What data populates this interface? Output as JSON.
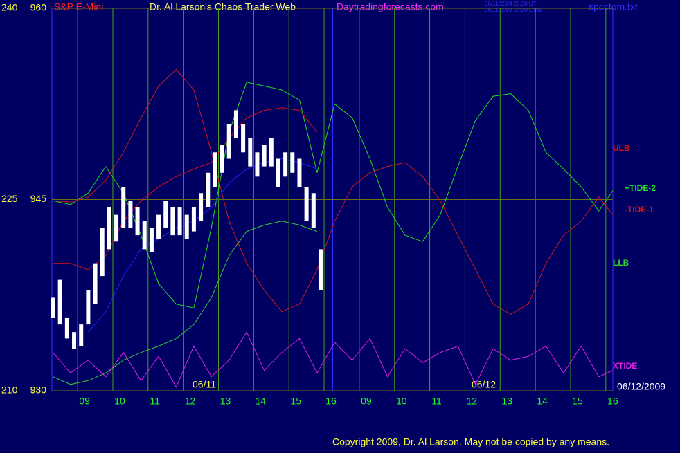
{
  "chart_data": {
    "type": "line",
    "title": "Dr. Al Larson's Chaos Trader Web",
    "instrument": "S&P E-Mini",
    "site": "Daytradingforecasts.com",
    "file": "spcctom.txt",
    "timestamps": [
      "06/11/2009 20:30 UT",
      "06/11/2009 15:30 Local"
    ],
    "date_labels": [
      "06/11",
      "06/12"
    ],
    "end_date": "06/12/2009",
    "copyright": "Copyright 2009, Dr. Al Larson. May not be copied by any means.",
    "xlim": [
      -0.73,
      15.2
    ],
    "xticks": [
      {
        "value": 0,
        "label": "09"
      },
      {
        "value": 1,
        "label": "10"
      },
      {
        "value": 2,
        "label": "11"
      },
      {
        "value": 3,
        "label": "12"
      },
      {
        "value": 4,
        "label": "13"
      },
      {
        "value": 5,
        "label": "14"
      },
      {
        "value": 6,
        "label": "15"
      },
      {
        "value": 7,
        "label": "16"
      },
      {
        "value": 8,
        "label": "09"
      },
      {
        "value": 9,
        "label": "10"
      },
      {
        "value": 10,
        "label": "11"
      },
      {
        "value": 11,
        "label": "12"
      },
      {
        "value": 12,
        "label": "13"
      },
      {
        "value": 13,
        "label": "14"
      },
      {
        "value": 14,
        "label": "15"
      },
      {
        "value": 15,
        "label": "16"
      }
    ],
    "ylim": [
      930,
      960
    ],
    "yticks": [
      930,
      945,
      960
    ],
    "y2lim": [
      210,
      240
    ],
    "y2ticks": [
      210,
      225,
      240
    ],
    "grid": true,
    "x": [
      -0.7,
      -0.2,
      0.3,
      0.8,
      1.3,
      1.8,
      2.3,
      2.8,
      3.3,
      3.8,
      4.3,
      4.8,
      5.3,
      5.8,
      6.3,
      6.8,
      7.3,
      7.8,
      8.3,
      8.8,
      9.3,
      9.8,
      10.3,
      10.8,
      11.3,
      11.8,
      12.3,
      12.8,
      13.3,
      13.8,
      14.3,
      14.8,
      15.2
    ],
    "series": [
      {
        "name": "ULB",
        "color": "#e01010",
        "values": [
          940.0,
          940.0,
          939.5,
          940.6,
          943.3,
          944.9,
          946.0,
          946.8,
          947.4,
          947.9,
          949.8,
          951.4,
          952.0,
          952.2,
          952.0,
          950.3,
          null,
          null,
          null,
          null,
          null,
          null,
          null,
          null,
          null,
          null,
          null,
          null,
          null,
          null,
          null,
          null,
          null
        ]
      },
      {
        "name": "+TIDE-2",
        "color": "#20e020",
        "values": [
          944.9,
          944.6,
          945.5,
          947.6,
          945.5,
          942.2,
          938.4,
          936.8,
          936.5,
          942.8,
          950.3,
          954.2,
          953.9,
          953.6,
          952.8,
          947.1,
          952.5,
          951.4,
          948.2,
          944.4,
          942.2,
          941.7,
          943.8,
          947.6,
          951.2,
          953.1,
          953.3,
          952.0,
          948.7,
          947.4,
          946.0,
          944.1,
          945.7
        ]
      },
      {
        "name": "-TIDE-1",
        "color": "#d01818",
        "values": [
          944.9,
          944.8,
          945.2,
          946.5,
          948.7,
          951.4,
          953.9,
          955.2,
          953.6,
          948.7,
          943.3,
          940.0,
          937.9,
          936.2,
          936.8,
          939.5,
          943.3,
          946.0,
          947.1,
          947.6,
          947.9,
          946.8,
          944.9,
          942.2,
          939.5,
          936.8,
          936.0,
          936.8,
          940.0,
          942.2,
          943.3,
          945.2,
          943.8
        ]
      },
      {
        "name": "LLB",
        "color": "#30d030",
        "values": [
          931.1,
          930.5,
          930.8,
          931.4,
          932.4,
          933.0,
          933.5,
          934.1,
          935.2,
          937.3,
          940.6,
          942.5,
          943.0,
          943.3,
          943.0,
          942.5,
          null,
          null,
          null,
          null,
          null,
          null,
          null,
          null,
          null,
          null,
          null,
          null,
          null,
          null,
          null,
          null,
          null
        ]
      },
      {
        "name": "XTIDE",
        "color": "#e020e0",
        "values": [
          933.0,
          931.4,
          932.4,
          931.1,
          933.0,
          930.8,
          932.7,
          930.3,
          933.5,
          931.1,
          932.4,
          934.6,
          931.6,
          933.0,
          934.1,
          931.4,
          933.8,
          932.4,
          934.1,
          931.1,
          933.3,
          932.2,
          933.0,
          933.5,
          930.5,
          933.3,
          932.4,
          932.7,
          933.5,
          931.4,
          933.5,
          931.1,
          931.6
        ]
      }
    ],
    "average": {
      "color": "#2020ff",
      "values": [
        null,
        null,
        934.6,
        936.2,
        939.0,
        941.1,
        941.9,
        942.8,
        943.3,
        944.4,
        946.3,
        947.4,
        947.9,
        948.2,
        947.9,
        947.4,
        null,
        null,
        null,
        null,
        null,
        null,
        null,
        null,
        null,
        null,
        null,
        null,
        null,
        null,
        null,
        null,
        null
      ]
    },
    "price_bars": {
      "color": "#ffffff",
      "x": [
        -0.7,
        -0.5,
        -0.3,
        -0.1,
        0.1,
        0.3,
        0.5,
        0.7,
        0.9,
        1.1,
        1.3,
        1.5,
        1.7,
        1.9,
        2.1,
        2.3,
        2.5,
        2.7,
        2.9,
        3.1,
        3.3,
        3.5,
        3.7,
        3.9,
        4.1,
        4.3,
        4.5,
        4.7,
        4.9,
        5.1,
        5.3,
        5.5,
        5.7,
        5.9,
        6.1,
        6.3,
        6.5,
        6.7,
        6.9
      ],
      "low": [
        935.7,
        935.2,
        934.1,
        933.3,
        933.5,
        935.2,
        936.8,
        939.0,
        941.1,
        941.7,
        942.8,
        942.8,
        942.2,
        941.1,
        940.9,
        941.9,
        942.8,
        942.2,
        942.2,
        941.9,
        942.5,
        943.3,
        944.4,
        946.0,
        947.1,
        948.2,
        949.8,
        948.7,
        947.6,
        946.8,
        947.6,
        947.6,
        946.0,
        946.8,
        947.1,
        946.0,
        943.3,
        942.8,
        937.9
      ],
      "high": [
        937.3,
        938.7,
        935.7,
        934.6,
        935.2,
        937.9,
        940.0,
        942.8,
        944.4,
        943.8,
        946.0,
        944.9,
        944.4,
        943.3,
        942.8,
        943.8,
        944.9,
        944.4,
        944.4,
        943.8,
        944.4,
        945.5,
        947.1,
        948.7,
        949.3,
        950.9,
        952.0,
        950.9,
        949.8,
        948.7,
        949.3,
        949.8,
        948.2,
        948.7,
        948.7,
        948.2,
        946.0,
        945.5,
        941.1
      ]
    }
  }
}
